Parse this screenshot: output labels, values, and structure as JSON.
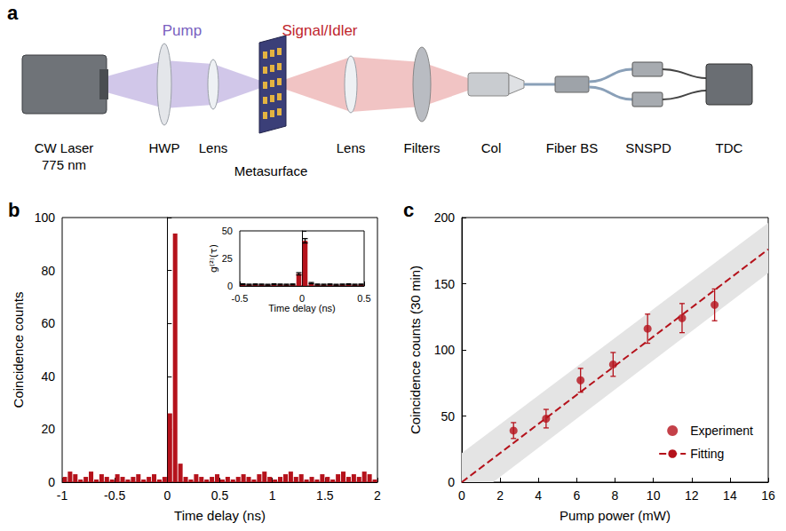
{
  "setup": {
    "panel_label": "a",
    "beams": [
      "Pump",
      "Signal/Idler"
    ],
    "components": [
      [
        "CW Laser",
        "775 nm"
      ],
      [
        "HWP"
      ],
      [
        "Lens"
      ],
      [
        "Metasurface"
      ],
      [
        "Lens"
      ],
      [
        "Filters"
      ],
      [
        "Col"
      ],
      [
        "Fiber BS"
      ],
      [
        "SNSPD"
      ],
      [
        "TDC"
      ]
    ]
  },
  "chart_data": [
    {
      "panel_label": "b",
      "type": "bar",
      "x_label": "Time delay (ns)",
      "y_label": "Coincidence counts",
      "color": "#b5121b",
      "x": [
        -0.975,
        -0.925,
        -0.875,
        -0.825,
        -0.775,
        -0.725,
        -0.675,
        -0.625,
        -0.575,
        -0.525,
        -0.475,
        -0.425,
        -0.375,
        -0.325,
        -0.275,
        -0.225,
        -0.175,
        -0.125,
        -0.075,
        -0.025,
        0.025,
        0.075,
        0.125,
        0.175,
        0.225,
        0.275,
        0.325,
        0.375,
        0.425,
        0.475,
        0.525,
        0.575,
        0.625,
        0.675,
        0.725,
        0.775,
        0.825,
        0.875,
        0.925,
        0.975,
        1.025,
        1.075,
        1.125,
        1.175,
        1.225,
        1.275,
        1.325,
        1.375,
        1.425,
        1.475,
        1.525,
        1.575,
        1.625,
        1.675,
        1.725,
        1.775,
        1.825,
        1.875,
        1.925,
        1.975
      ],
      "values": [
        2,
        4,
        3,
        1,
        2,
        4,
        1,
        3,
        2,
        1,
        3,
        2,
        1,
        2,
        3,
        1,
        2,
        3,
        1,
        2,
        26,
        94,
        7,
        2,
        1,
        3,
        2,
        1,
        2,
        3,
        1,
        2,
        1,
        2,
        3,
        2,
        1,
        3,
        4,
        2,
        1,
        2,
        3,
        4,
        2,
        3,
        1,
        2,
        1,
        3,
        2,
        1,
        3,
        4,
        2,
        3,
        2,
        4,
        3,
        1
      ],
      "xlim": [
        -1,
        2
      ],
      "xticks": [
        -1,
        -0.5,
        0,
        0.5,
        1,
        1.5,
        2
      ],
      "ylim": [
        0,
        100
      ],
      "yticks": [
        0,
        20,
        40,
        60,
        80,
        100
      ]
    },
    {
      "type": "bar",
      "x_label": "Time delay (ns)",
      "y_label": "g⁽²⁾(τ)",
      "color": "#b5121b",
      "x": [
        -0.475,
        -0.425,
        -0.375,
        -0.325,
        -0.275,
        -0.225,
        -0.175,
        -0.125,
        -0.075,
        -0.025,
        0.025,
        0.075,
        0.125,
        0.175,
        0.225,
        0.275,
        0.325,
        0.375,
        0.425,
        0.475
      ],
      "values": [
        1.5,
        1.2,
        1.4,
        1.3,
        1.1,
        1.5,
        1.3,
        1.2,
        1.4,
        11,
        41,
        2.5,
        1.3,
        1.2,
        1.4,
        1.1,
        1.3,
        1.5,
        1.2,
        1.3
      ],
      "errors": [
        0.4,
        0.4,
        0.4,
        0.4,
        0.4,
        0.4,
        0.4,
        0.4,
        0.4,
        1,
        2,
        0.6,
        0.4,
        0.4,
        0.4,
        0.4,
        0.4,
        0.4,
        0.4,
        0.4
      ],
      "xlim": [
        -0.5,
        0.5
      ],
      "xticks": [
        -0.5,
        0,
        0.5
      ],
      "ylim": [
        0,
        50
      ],
      "yticks": [
        0,
        25,
        50
      ]
    },
    {
      "panel_label": "c",
      "type": "scatter",
      "x_label": "Pump power (mW)",
      "y_label": "Coincidence counts (30 min)",
      "xlim": [
        0,
        16
      ],
      "xticks": [
        0,
        2,
        4,
        6,
        8,
        10,
        12,
        14,
        16
      ],
      "ylim": [
        0,
        200
      ],
      "yticks": [
        0,
        50,
        100,
        150,
        200
      ],
      "legend": "lower right",
      "series": [
        {
          "name": "Experiment",
          "type": "scatter",
          "marker": "circle",
          "color": "#b5121b",
          "x": [
            2.7,
            4.4,
            6.2,
            7.9,
            9.7,
            11.5,
            13.2
          ],
          "values": [
            39,
            48,
            77,
            89,
            116,
            124,
            134
          ],
          "errors": [
            6,
            7,
            9,
            9,
            11,
            11,
            12
          ]
        },
        {
          "name": "Fitting",
          "type": "line",
          "line_style": "dashed",
          "color": "#b5121b",
          "x": [
            0,
            16
          ],
          "values": [
            0,
            176
          ]
        }
      ],
      "band": {
        "x": [
          0,
          16
        ],
        "lower": [
          -18,
          158
        ],
        "upper": [
          22,
          196
        ],
        "color": "#e4e4e4"
      }
    }
  ]
}
